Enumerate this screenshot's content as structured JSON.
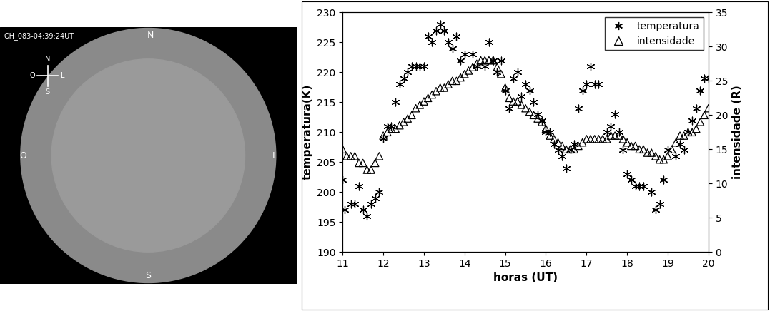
{
  "chart_data": {
    "type": "scatter",
    "xlabel": "horas (UT)",
    "ylabel": "temperatura(K)",
    "y2label": "intensidade (R)",
    "xlim": [
      11,
      20
    ],
    "xticks": [
      11,
      12,
      13,
      14,
      15,
      16,
      17,
      18,
      19,
      20
    ],
    "ylim": [
      190,
      230
    ],
    "yticks": [
      190,
      195,
      200,
      205,
      210,
      215,
      220,
      225,
      230
    ],
    "y2lim": [
      0,
      35
    ],
    "y2ticks": [
      0,
      5,
      10,
      15,
      20,
      25,
      30,
      35
    ],
    "legend": "upper right",
    "grid": false,
    "series": [
      {
        "name": "temperatura",
        "color": "#000000",
        "marker": "asterisk",
        "axis": "y",
        "x": [
          11.0,
          11.05,
          11.2,
          11.3,
          11.4,
          11.5,
          11.6,
          11.7,
          11.8,
          11.9,
          12.0,
          12.1,
          12.2,
          12.3,
          12.4,
          12.5,
          12.6,
          12.7,
          12.8,
          12.9,
          13.0,
          13.1,
          13.2,
          13.3,
          13.4,
          13.5,
          13.6,
          13.7,
          13.8,
          13.9,
          14.0,
          14.2,
          14.3,
          14.5,
          14.6,
          14.7,
          14.8,
          14.9,
          15.0,
          15.1,
          15.2,
          15.3,
          15.4,
          15.5,
          15.6,
          15.7,
          15.8,
          15.9,
          16.0,
          16.1,
          16.2,
          16.3,
          16.4,
          16.5,
          16.6,
          16.7,
          16.8,
          16.9,
          17.0,
          17.1,
          17.2,
          17.3,
          17.5,
          17.6,
          17.7,
          17.8,
          17.9,
          18.0,
          18.1,
          18.2,
          18.3,
          18.4,
          18.6,
          18.7,
          18.8,
          18.9,
          19.0,
          19.2,
          19.3,
          19.4,
          19.5,
          19.6,
          19.7,
          19.8,
          19.9,
          20.0
        ],
        "values": [
          202,
          197,
          198,
          198,
          201,
          197,
          196,
          198,
          199,
          200,
          209,
          211,
          211,
          215,
          218,
          219,
          220,
          221,
          221,
          221,
          221,
          226,
          225,
          227,
          228,
          227,
          225,
          224,
          226,
          222,
          223,
          223,
          221,
          221,
          225,
          222,
          220,
          222,
          217,
          214,
          219,
          220,
          216,
          218,
          217,
          215,
          213,
          212,
          210,
          210,
          208,
          207,
          206,
          204,
          207,
          208,
          214,
          217,
          218,
          221,
          218,
          218,
          210,
          211,
          213,
          210,
          207,
          203,
          202,
          201,
          201,
          201,
          200,
          197,
          198,
          202,
          207,
          206,
          208,
          207,
          210,
          212,
          214,
          217,
          219,
          219
        ]
      },
      {
        "name": "intensidade",
        "color": "#000000",
        "marker": "triangle",
        "axis": "y2",
        "x": [
          11.0,
          11.1,
          11.2,
          11.3,
          11.4,
          11.5,
          11.6,
          11.7,
          11.8,
          11.9,
          12.0,
          12.1,
          12.2,
          12.3,
          12.4,
          12.5,
          12.6,
          12.7,
          12.8,
          12.9,
          13.0,
          13.1,
          13.2,
          13.3,
          13.4,
          13.5,
          13.6,
          13.7,
          13.8,
          13.9,
          14.0,
          14.1,
          14.2,
          14.3,
          14.4,
          14.5,
          14.6,
          14.7,
          14.8,
          14.9,
          15.0,
          15.1,
          15.2,
          15.3,
          15.4,
          15.5,
          15.6,
          15.7,
          15.8,
          15.9,
          16.0,
          16.1,
          16.2,
          16.3,
          16.4,
          16.5,
          16.6,
          16.7,
          16.8,
          16.9,
          17.0,
          17.1,
          17.2,
          17.3,
          17.4,
          17.5,
          17.6,
          17.7,
          17.8,
          17.9,
          18.0,
          18.1,
          18.2,
          18.3,
          18.4,
          18.5,
          18.6,
          18.7,
          18.8,
          18.9,
          19.0,
          19.1,
          19.2,
          19.3,
          19.4,
          19.5,
          19.6,
          19.7,
          19.8,
          19.9,
          20.0
        ],
        "values": [
          15,
          14,
          14,
          14,
          13,
          13,
          12,
          12,
          13,
          14,
          17,
          17.5,
          18,
          18,
          18.5,
          19,
          19.5,
          20,
          21,
          21.5,
          22,
          22.5,
          23,
          23.5,
          24,
          24,
          24.5,
          25,
          25,
          25.5,
          26,
          26.5,
          27,
          27.5,
          28,
          28,
          28,
          28,
          27,
          26,
          24,
          22.5,
          22,
          22,
          21.5,
          21,
          20.5,
          20,
          19.5,
          19,
          18,
          17,
          16.5,
          16,
          15.5,
          15,
          15,
          15,
          15.5,
          16,
          16.5,
          16.5,
          16.5,
          16.5,
          16.5,
          16.5,
          17,
          17,
          17,
          16.5,
          16,
          15.5,
          15.5,
          15,
          15,
          14.5,
          14.5,
          14,
          13.5,
          13.5,
          14,
          15,
          16,
          17,
          17,
          17.5,
          17.5,
          18,
          19,
          20,
          21
        ]
      }
    ]
  },
  "image": {
    "caption": "OH_083-04:39:24UT",
    "compass": {
      "north": "N",
      "south": "S",
      "west": "O",
      "east": "L"
    },
    "edges": {
      "top": "N",
      "bottom": "S",
      "left": "O",
      "right": "L"
    }
  }
}
